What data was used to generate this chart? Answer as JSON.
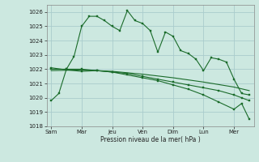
{
  "background_color": "#cce8e0",
  "grid_color": "#aacccc",
  "line_color": "#1a6b2a",
  "xtick_labels": [
    "Sam",
    "Mar",
    "Jeu",
    "Ven",
    "Dim",
    "Lun",
    "Mer"
  ],
  "xtick_positions": [
    0,
    1,
    2,
    3,
    4,
    5,
    6
  ],
  "xlabel": "Pression niveau de la mer( hPa )",
  "ylim": [
    1018,
    1026.5
  ],
  "yticks": [
    1018,
    1019,
    1020,
    1021,
    1022,
    1023,
    1024,
    1025,
    1026
  ],
  "series1_x": [
    0.0,
    0.25,
    0.5,
    0.75,
    1.0,
    1.25,
    1.5,
    1.75,
    2.0,
    2.25,
    2.5,
    2.75,
    3.0,
    3.25,
    3.5,
    3.75,
    4.0,
    4.25,
    4.5,
    4.75,
    5.0,
    5.25,
    5.5,
    5.75,
    6.0,
    6.25,
    6.5
  ],
  "series1_y": [
    1019.8,
    1020.3,
    1022.0,
    1022.9,
    1025.0,
    1025.7,
    1025.7,
    1025.4,
    1025.0,
    1024.7,
    1026.1,
    1025.4,
    1025.2,
    1024.7,
    1023.2,
    1024.6,
    1024.3,
    1023.3,
    1023.1,
    1022.7,
    1021.9,
    1022.8,
    1022.7,
    1022.5,
    1021.3,
    1020.3,
    1020.2
  ],
  "series2_x": [
    0.0,
    0.5,
    1.0,
    1.5,
    2.0,
    2.5,
    3.0,
    3.5,
    4.0,
    4.5,
    5.0,
    5.5,
    6.0,
    6.25,
    6.5
  ],
  "series2_y": [
    1022.0,
    1022.0,
    1022.0,
    1021.9,
    1021.8,
    1021.7,
    1021.5,
    1021.3,
    1021.1,
    1020.9,
    1020.7,
    1020.5,
    1020.2,
    1020.0,
    1019.8
  ],
  "series3_x": [
    0.0,
    1.0,
    2.0,
    3.0,
    4.0,
    5.0,
    6.0,
    6.5
  ],
  "series3_y": [
    1021.9,
    1021.95,
    1021.85,
    1021.65,
    1021.4,
    1021.1,
    1020.75,
    1020.5
  ],
  "series4_x": [
    0.0,
    0.5,
    1.0,
    1.5,
    2.0,
    2.5,
    3.0,
    3.5,
    4.0,
    4.5,
    5.0,
    5.5,
    6.0,
    6.25,
    6.5
  ],
  "series4_y": [
    1022.1,
    1021.95,
    1021.85,
    1021.9,
    1021.8,
    1021.6,
    1021.4,
    1021.2,
    1020.9,
    1020.6,
    1020.2,
    1019.7,
    1019.2,
    1019.6,
    1018.5
  ],
  "xlim": [
    -0.15,
    6.65
  ]
}
